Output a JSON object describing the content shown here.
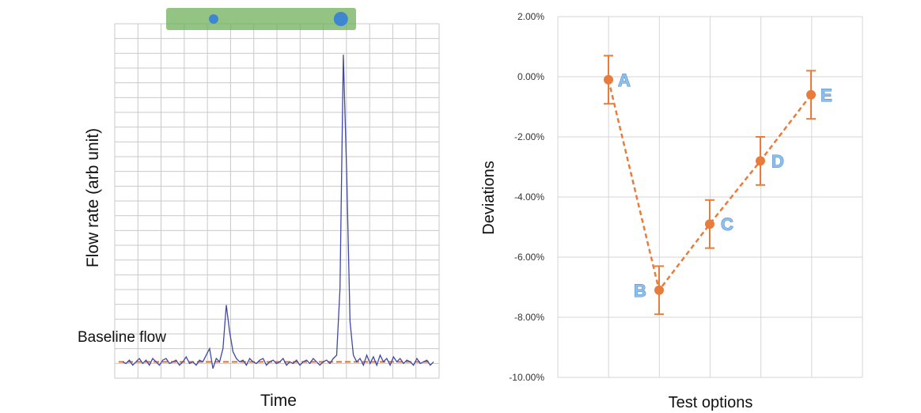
{
  "colors": {
    "flow_line": "#3f48a8",
    "baseline": "#e8742c",
    "series": "#e87c3c",
    "grid": "#c9c9c9",
    "bar": "#6fb05a",
    "bubble": "#3f86d0",
    "label": "#8fc0ea"
  },
  "chart_data": [
    {
      "type": "line",
      "title": "",
      "xlabel": "Time",
      "ylabel": "Flow rate (arb unit)",
      "annotations": [
        "Baseline flow"
      ],
      "grid": true,
      "baseline_level": 0.03,
      "ylim": [
        0,
        1
      ],
      "series": [
        {
          "values": [
            0.03,
            0.025,
            0.035,
            0.02,
            0.03,
            0.04,
            0.025,
            0.035,
            0.02,
            0.04,
            0.03,
            0.02,
            0.035,
            0.04,
            0.025,
            0.03,
            0.035,
            0.02,
            0.03,
            0.045,
            0.025,
            0.03,
            0.02,
            0.035,
            0.03,
            0.05,
            0.07,
            0.01,
            0.04,
            0.03,
            0.07,
            0.2,
            0.12,
            0.06,
            0.04,
            0.03,
            0.035,
            0.02,
            0.04,
            0.03,
            0.025,
            0.035,
            0.04,
            0.02,
            0.03,
            0.035,
            0.025,
            0.03,
            0.04,
            0.02,
            0.03,
            0.025,
            0.035,
            0.02,
            0.03,
            0.035,
            0.025,
            0.04,
            0.03,
            0.02,
            0.03,
            0.035,
            0.025,
            0.04,
            0.05,
            0.25,
            0.95,
            0.6,
            0.15,
            0.05,
            0.03,
            0.04,
            0.02,
            0.05,
            0.025,
            0.045,
            0.02,
            0.05,
            0.03,
            0.04,
            0.02,
            0.045,
            0.03,
            0.04,
            0.025,
            0.035,
            0.03,
            0.02,
            0.04,
            0.025,
            0.03,
            0.035,
            0.02,
            0.03
          ]
        }
      ],
      "indicator": {
        "markers": [
          {
            "position": 0.25,
            "size": "small"
          },
          {
            "position": 0.92,
            "size": "large"
          }
        ]
      }
    },
    {
      "type": "line",
      "title": "",
      "xlabel": "Test options",
      "ylabel": "Deviations",
      "categories": [
        "A",
        "B",
        "C",
        "D",
        "E"
      ],
      "ylim": [
        -10,
        2
      ],
      "yticks": [
        2,
        0,
        -2,
        -4,
        -6,
        -8,
        -10
      ],
      "ytick_labels": [
        "2.00%",
        "0.00%",
        "-2.00%",
        "-4.00%",
        "-6.00%",
        "-8.00%",
        "-10.00%"
      ],
      "grid": true,
      "series": [
        {
          "values": [
            -0.1,
            -7.1,
            -4.9,
            -2.8,
            -0.6
          ],
          "error": 0.8
        }
      ]
    }
  ]
}
